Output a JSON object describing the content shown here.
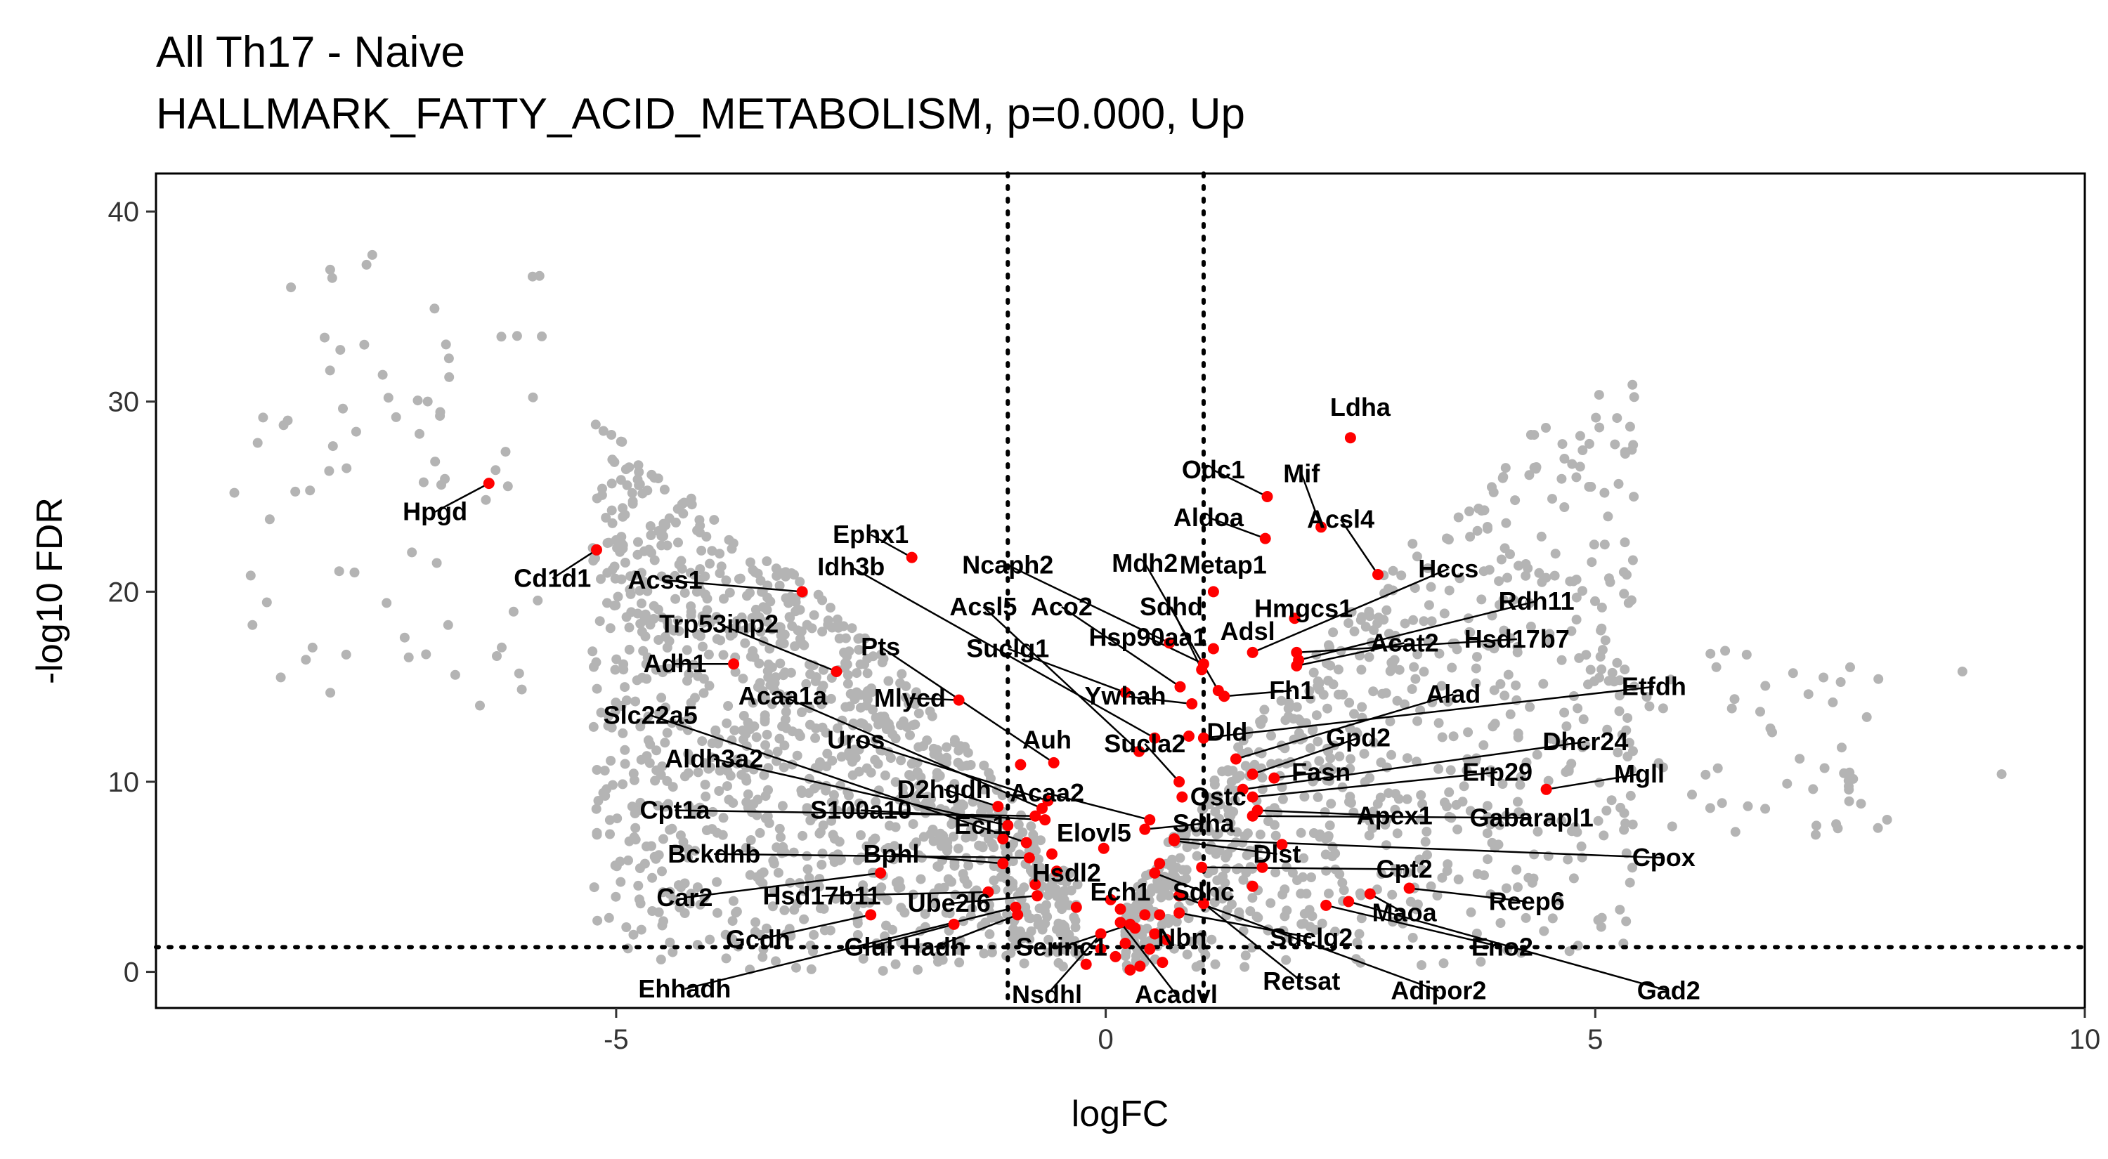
{
  "chart_data": {
    "type": "scatter",
    "title": "All Th17 - Naive",
    "subtitle": "HALLMARK_FATTY_ACID_METABOLISM, p=0.000, Up",
    "xlabel": "logFC",
    "ylabel": "-log10 FDR",
    "xlim": [
      -9.7,
      10
    ],
    "ylim": [
      -1.9,
      42
    ],
    "xticks": [
      -5,
      0,
      5,
      10
    ],
    "xtick_labels": [
      "-5",
      "0",
      "5",
      "10"
    ],
    "yticks": [
      0,
      10,
      20,
      30,
      40
    ],
    "ytick_labels": [
      "0",
      "10",
      "20",
      "30",
      "40"
    ],
    "grid": false,
    "reference_lines": {
      "logFC": [
        -1,
        1
      ],
      "neg_log10_fdr": 1.3
    },
    "colors": {
      "background_points": "#b4b4b4",
      "highlighted_points": "#ff0000",
      "labels": "#000000"
    },
    "highlighted_genes": [
      {
        "gene": "Ldha",
        "x": 2.5,
        "y": 28.1,
        "lx": 2.6,
        "ly": 29.7
      },
      {
        "gene": "Hpgd",
        "x": -6.3,
        "y": 25.7,
        "lx": -6.85,
        "ly": 24.2
      },
      {
        "gene": "Odc1",
        "x": 1.65,
        "y": 25.0,
        "lx": 1.1,
        "ly": 26.4
      },
      {
        "gene": "Mif",
        "x": 2.2,
        "y": 23.4,
        "lx": 2.0,
        "ly": 26.2
      },
      {
        "gene": "Aldoa",
        "x": 1.63,
        "y": 22.8,
        "lx": 1.05,
        "ly": 23.9
      },
      {
        "gene": "Acsl4",
        "x": 2.78,
        "y": 20.9,
        "lx": 2.4,
        "ly": 23.8
      },
      {
        "gene": "Ephx1",
        "x": -1.98,
        "y": 21.8,
        "lx": -2.4,
        "ly": 23.0
      },
      {
        "gene": "Cd1d1",
        "x": -5.2,
        "y": 22.2,
        "lx": -5.65,
        "ly": 20.7
      },
      {
        "gene": "Ncaph2",
        "x": 0.65,
        "y": 17.3,
        "lx": -1.0,
        "ly": 21.4
      },
      {
        "gene": "Mdh2",
        "x": 1.15,
        "y": 14.8,
        "lx": 0.4,
        "ly": 21.5
      },
      {
        "gene": "Metap1",
        "x": 1.1,
        "y": 20.0,
        "lx": 1.2,
        "ly": 21.4
      },
      {
        "gene": "Idh3b",
        "x": 0.5,
        "y": 12.3,
        "lx": -2.6,
        "ly": 21.3
      },
      {
        "gene": "Acss1",
        "x": -3.1,
        "y": 20.0,
        "lx": -4.5,
        "ly": 20.6
      },
      {
        "gene": "Hccs",
        "x": 1.5,
        "y": 16.8,
        "lx": 3.5,
        "ly": 21.2
      },
      {
        "gene": "Sdhd",
        "x": 0.98,
        "y": 15.9,
        "lx": 0.67,
        "ly": 19.2
      },
      {
        "gene": "Hmgcs1",
        "x": 1.93,
        "y": 18.6,
        "lx": 2.02,
        "ly": 19.1
      },
      {
        "gene": "Rdh11",
        "x": 1.97,
        "y": 16.4,
        "lx": 4.4,
        "ly": 19.5
      },
      {
        "gene": "Acsl5",
        "x": 0.34,
        "y": 11.6,
        "lx": -1.25,
        "ly": 19.2
      },
      {
        "gene": "Aco2",
        "x": 0.76,
        "y": 15.0,
        "lx": -0.45,
        "ly": 19.2
      },
      {
        "gene": "Trp53inp2",
        "x": -2.75,
        "y": 15.8,
        "lx": -3.95,
        "ly": 18.3
      },
      {
        "gene": "Hsp90aa1",
        "x": 1.0,
        "y": 16.2,
        "lx": 0.43,
        "ly": 17.6
      },
      {
        "gene": "Adsl",
        "x": 1.1,
        "y": 17.0,
        "lx": 1.45,
        "ly": 17.9
      },
      {
        "gene": "Hsd17b7",
        "x": 1.95,
        "y": 16.8,
        "lx": 4.2,
        "ly": 17.5
      },
      {
        "gene": "Acat2",
        "x": 1.95,
        "y": 16.1,
        "lx": 3.05,
        "ly": 17.3
      },
      {
        "gene": "Pts",
        "x": -0.53,
        "y": 11.0,
        "lx": -2.3,
        "ly": 17.1
      },
      {
        "gene": "Suclg1",
        "x": 0.2,
        "y": 14.7,
        "lx": -1.0,
        "ly": 17.0
      },
      {
        "gene": "Adh1",
        "x": -3.8,
        "y": 16.2,
        "lx": -4.4,
        "ly": 16.2
      },
      {
        "gene": "Fh1",
        "x": 1.21,
        "y": 14.5,
        "lx": 1.9,
        "ly": 14.8
      },
      {
        "gene": "Alad",
        "x": 1.33,
        "y": 11.2,
        "lx": 3.55,
        "ly": 14.6
      },
      {
        "gene": "Etfdh",
        "x": 1.0,
        "y": 12.3,
        "lx": 5.6,
        "ly": 15.0
      },
      {
        "gene": "Ywhah",
        "x": 0.88,
        "y": 14.1,
        "lx": 0.2,
        "ly": 14.5
      },
      {
        "gene": "Acaa1a",
        "x": -0.65,
        "y": 8.6,
        "lx": -3.3,
        "ly": 14.5
      },
      {
        "gene": "Mlycd",
        "x": -1.5,
        "y": 14.3,
        "lx": -2.0,
        "ly": 14.4
      },
      {
        "gene": "Slc22a5",
        "x": -0.81,
        "y": 6.8,
        "lx": -4.65,
        "ly": 13.5
      },
      {
        "gene": "Dld",
        "x": 0.85,
        "y": 12.4,
        "lx": 1.24,
        "ly": 12.6
      },
      {
        "gene": "Gpd2",
        "x": 1.5,
        "y": 10.4,
        "lx": 2.58,
        "ly": 12.3
      },
      {
        "gene": "Dhcr24",
        "x": 1.4,
        "y": 9.6,
        "lx": 4.9,
        "ly": 12.1
      },
      {
        "gene": "Uros",
        "x": -0.59,
        "y": 9.0,
        "lx": -2.55,
        "ly": 12.2
      },
      {
        "gene": "Auh",
        "x": -0.87,
        "y": 10.9,
        "lx": -0.6,
        "ly": 12.2
      },
      {
        "gene": "Sucla2",
        "x": 0.75,
        "y": 10.0,
        "lx": 0.4,
        "ly": 12.0
      },
      {
        "gene": "Aldh3a2",
        "x": -1.0,
        "y": 7.7,
        "lx": -4.0,
        "ly": 11.2
      },
      {
        "gene": "Erp29",
        "x": 1.5,
        "y": 9.2,
        "lx": 4.0,
        "ly": 10.5
      },
      {
        "gene": "Fasn",
        "x": 1.72,
        "y": 10.2,
        "lx": 2.2,
        "ly": 10.5
      },
      {
        "gene": "Mgll",
        "x": 4.5,
        "y": 9.6,
        "lx": 5.45,
        "ly": 10.4
      },
      {
        "gene": "D2hgdh",
        "x": -1.1,
        "y": 8.7,
        "lx": -1.65,
        "ly": 9.6
      },
      {
        "gene": "Acaa2",
        "x": 0.45,
        "y": 8.0,
        "lx": -0.6,
        "ly": 9.4
      },
      {
        "gene": "Ostc",
        "x": 0.78,
        "y": 9.2,
        "lx": 1.15,
        "ly": 9.2
      },
      {
        "gene": "Cpt1a",
        "x": -0.72,
        "y": 8.2,
        "lx": -4.4,
        "ly": 8.5
      },
      {
        "gene": "S100a10",
        "x": -0.62,
        "y": 8.0,
        "lx": -2.5,
        "ly": 8.5
      },
      {
        "gene": "Apex1",
        "x": 1.55,
        "y": 8.5,
        "lx": 2.95,
        "ly": 8.2
      },
      {
        "gene": "Gabarapl1",
        "x": 1.5,
        "y": 8.2,
        "lx": 4.35,
        "ly": 8.1
      },
      {
        "gene": "Sdha",
        "x": 0.4,
        "y": 7.5,
        "lx": 1.0,
        "ly": 7.8
      },
      {
        "gene": "Eci1",
        "x": -1.05,
        "y": 7.0,
        "lx": -1.28,
        "ly": 7.7
      },
      {
        "gene": "Elovl5",
        "x": -0.02,
        "y": 6.5,
        "lx": -0.12,
        "ly": 7.3
      },
      {
        "gene": "Dlst",
        "x": 0.7,
        "y": 6.9,
        "lx": 1.75,
        "ly": 6.2
      },
      {
        "gene": "Cpox",
        "x": 0.7,
        "y": 7.0,
        "lx": 5.7,
        "ly": 6.0
      },
      {
        "gene": "Bckdhb",
        "x": -0.78,
        "y": 6.0,
        "lx": -4.0,
        "ly": 6.2
      },
      {
        "gene": "Bphl",
        "x": -1.05,
        "y": 5.7,
        "lx": -2.19,
        "ly": 6.2
      },
      {
        "gene": "Cpt2",
        "x": 0.98,
        "y": 5.5,
        "lx": 3.05,
        "ly": 5.4
      },
      {
        "gene": "Hsdl2",
        "x": -0.72,
        "y": 4.6,
        "lx": -0.4,
        "ly": 5.2
      },
      {
        "gene": "Car2",
        "x": -2.3,
        "y": 5.2,
        "lx": -4.3,
        "ly": 3.9
      },
      {
        "gene": "Hsd17b11",
        "x": -1.2,
        "y": 4.2,
        "lx": -2.9,
        "ly": 4.0
      },
      {
        "gene": "Ube2l6",
        "x": -0.7,
        "y": 4.0,
        "lx": -1.6,
        "ly": 3.6
      },
      {
        "gene": "Sdhc",
        "x": 0.5,
        "y": 5.2,
        "lx": 1.0,
        "ly": 4.2
      },
      {
        "gene": "Ech1",
        "x": 0.05,
        "y": 3.8,
        "lx": 0.15,
        "ly": 4.2
      },
      {
        "gene": "Reep6",
        "x": 3.1,
        "y": 4.4,
        "lx": 4.3,
        "ly": 3.7
      },
      {
        "gene": "Maoa",
        "x": 2.7,
        "y": 4.1,
        "lx": 3.05,
        "ly": 3.1
      },
      {
        "gene": "Gcdh",
        "x": -2.4,
        "y": 3.0,
        "lx": -3.55,
        "ly": 1.7
      },
      {
        "gene": "Glul",
        "x": -1.55,
        "y": 2.5,
        "lx": -2.42,
        "ly": 1.3
      },
      {
        "gene": "Hadh",
        "x": -0.9,
        "y": 3.0,
        "lx": -1.75,
        "ly": 1.3
      },
      {
        "gene": "Serinc1",
        "x": 0.25,
        "y": 2.5,
        "lx": -0.45,
        "ly": 1.3
      },
      {
        "gene": "Nbn",
        "x": 0.55,
        "y": 3.0,
        "lx": 0.78,
        "ly": 1.8
      },
      {
        "gene": "Suclg2",
        "x": 0.75,
        "y": 3.1,
        "lx": 2.1,
        "ly": 1.8
      },
      {
        "gene": "Eno2",
        "x": 2.25,
        "y": 3.5,
        "lx": 4.05,
        "ly": 1.3
      },
      {
        "gene": "Ehhadh",
        "x": -0.92,
        "y": 3.4,
        "lx": -4.3,
        "ly": -0.9
      },
      {
        "gene": "Nsdhl",
        "x": -0.05,
        "y": 2.0,
        "lx": -0.6,
        "ly": -1.2
      },
      {
        "gene": "Acadvl",
        "x": 0.15,
        "y": 2.6,
        "lx": 0.72,
        "ly": -1.2
      },
      {
        "gene": "Retsat",
        "x": 1.0,
        "y": 3.6,
        "lx": 2.0,
        "ly": -0.5
      },
      {
        "gene": "Adipor2",
        "x": 0.75,
        "y": 4.0,
        "lx": 3.4,
        "ly": -1.0
      },
      {
        "gene": "Gad2",
        "x": 2.48,
        "y": 3.7,
        "lx": 5.75,
        "ly": -1.0
      }
    ],
    "highlighted_unlabeled": [
      {
        "x": 0.3,
        "y": 2.3
      },
      {
        "x": 0.4,
        "y": 3.0
      },
      {
        "x": 0.2,
        "y": 1.5
      },
      {
        "x": 0.1,
        "y": 0.8
      },
      {
        "x": 0.35,
        "y": 0.3
      },
      {
        "x": -0.2,
        "y": 0.4
      },
      {
        "x": -0.05,
        "y": 1.2
      },
      {
        "x": 0.5,
        "y": 2.0
      },
      {
        "x": 0.58,
        "y": 0.5
      },
      {
        "x": 0.15,
        "y": 3.3
      },
      {
        "x": -0.3,
        "y": 3.4
      },
      {
        "x": 0.45,
        "y": 1.2
      },
      {
        "x": 0.62,
        "y": 1.7
      },
      {
        "x": 0.25,
        "y": 0.1
      },
      {
        "x": 1.5,
        "y": 4.5
      },
      {
        "x": 1.6,
        "y": 5.5
      },
      {
        "x": 1.8,
        "y": 6.7
      },
      {
        "x": -0.55,
        "y": 6.2
      },
      {
        "x": -0.5,
        "y": 5.3
      },
      {
        "x": 0.55,
        "y": 5.7
      }
    ]
  }
}
